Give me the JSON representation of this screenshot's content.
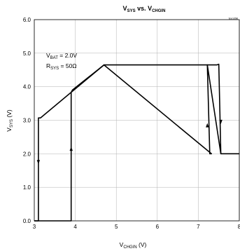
{
  "chart_data": {
    "type": "line",
    "title": {
      "main": "V",
      "main_sub": "SYS",
      "mid": " vs. V",
      "end_sub": "CHGIN"
    },
    "code": "tocc06",
    "xlabel": {
      "main": "V",
      "sub": "CHGIN",
      "unit": " (V)"
    },
    "ylabel": {
      "main": "V",
      "sub": "SYS",
      "unit": " (V)"
    },
    "xlim": [
      3,
      8
    ],
    "ylim": [
      0,
      6
    ],
    "x_ticks": [
      3,
      4,
      5,
      6,
      7,
      8
    ],
    "y_ticks": [
      0.0,
      1.0,
      2.0,
      3.0,
      4.0,
      5.0,
      6.0
    ],
    "x_tick_labels": [
      "3",
      "4",
      "5",
      "6",
      "7",
      "8"
    ],
    "y_tick_labels": [
      "0.0",
      "1.0",
      "2.0",
      "3.0",
      "4.0",
      "5.0",
      "6.0"
    ],
    "grid": true,
    "annotations": [
      {
        "main": "V",
        "sub": "BAT",
        "value": " = 2.0V"
      },
      {
        "main": "R",
        "sub": "SYS",
        "value": " = 50Ω"
      }
    ],
    "series": [
      {
        "direction": "rising",
        "x": [
          3.0,
          3.1,
          3.9,
          3.9,
          3.93,
          4.7,
          7.45,
          7.5,
          7.55,
          7.6,
          8.0
        ],
        "y": [
          0.0,
          0.0,
          0.0,
          3.83,
          3.9,
          4.65,
          4.65,
          4.67,
          2.0,
          2.0,
          2.0
        ]
      },
      {
        "direction": "falling",
        "x": [
          7.55,
          7.22,
          7.28,
          7.32,
          4.7,
          3.15,
          3.1,
          3.1,
          3.0
        ],
        "y": [
          2.0,
          4.65,
          2.0,
          2.0,
          4.65,
          3.07,
          3.07,
          0.0,
          0.0
        ]
      }
    ],
    "arrows": [
      {
        "x": 3.1,
        "y": 1.75,
        "dir": "down"
      },
      {
        "x": 3.9,
        "y": 2.15,
        "dir": "up"
      },
      {
        "x": 7.55,
        "y": 2.95,
        "dir": "down"
      },
      {
        "x": 7.22,
        "y": 2.85,
        "dir": "up"
      }
    ]
  }
}
